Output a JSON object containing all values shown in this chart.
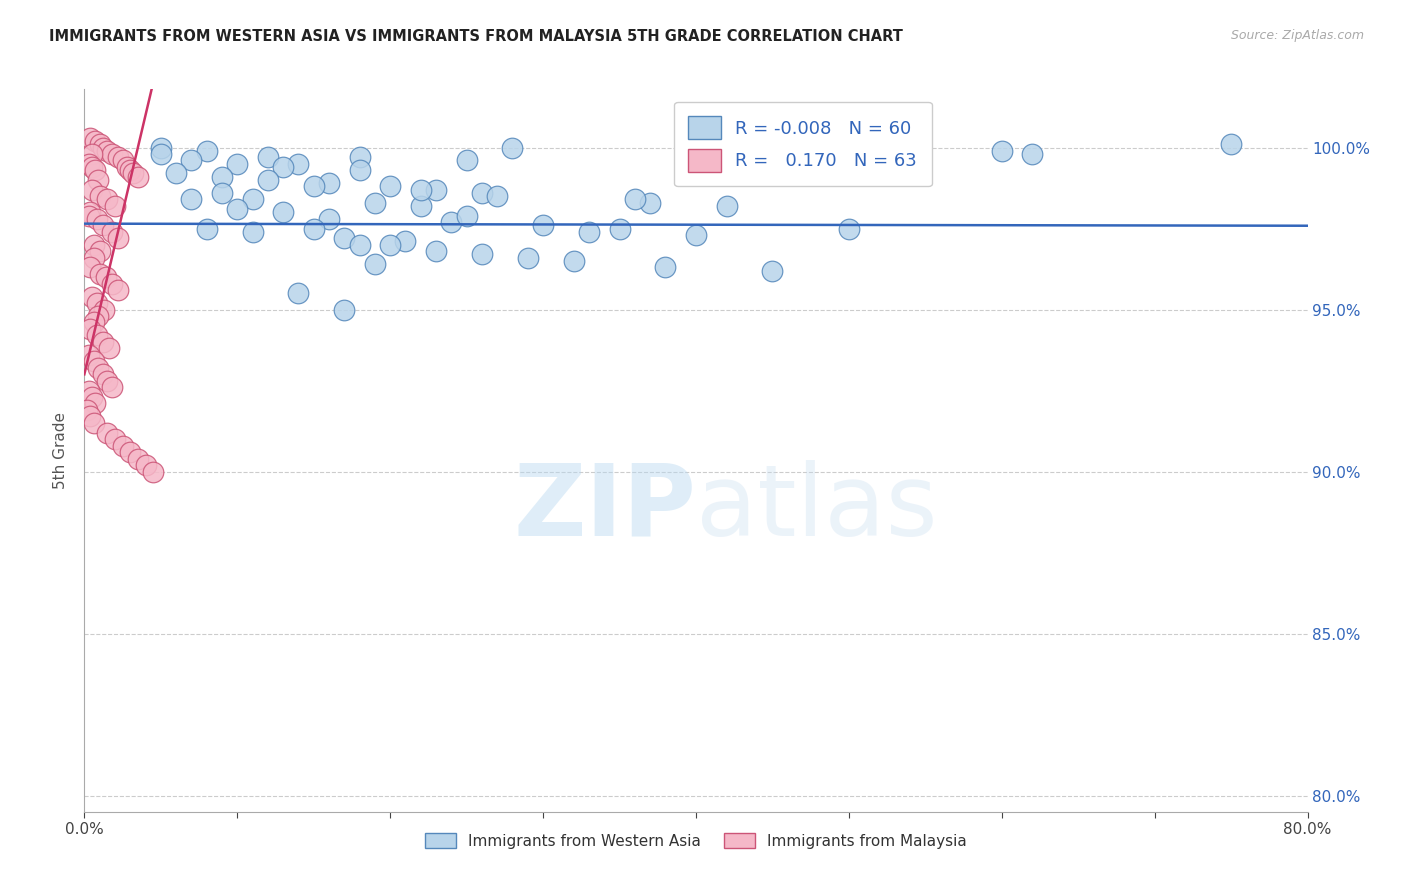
{
  "title": "IMMIGRANTS FROM WESTERN ASIA VS IMMIGRANTS FROM MALAYSIA 5TH GRADE CORRELATION CHART",
  "source": "Source: ZipAtlas.com",
  "ylabel": "5th Grade",
  "xmin": 0.0,
  "xmax": 0.8,
  "ymin": 0.795,
  "ymax": 1.018,
  "ytick_labels": [
    "80.0%",
    "85.0%",
    "90.0%",
    "95.0%",
    "100.0%"
  ],
  "ytick_vals": [
    0.8,
    0.85,
    0.9,
    0.95,
    1.0
  ],
  "xtick_vals": [
    0.0,
    0.1,
    0.2,
    0.3,
    0.4,
    0.5,
    0.6,
    0.7,
    0.8
  ],
  "xtick_labels": [
    "0.0%",
    "",
    "",
    "",
    "",
    "",
    "",
    "",
    "80.0%"
  ],
  "blue_R": "-0.008",
  "blue_N": "60",
  "pink_R": "0.170",
  "pink_N": "63",
  "blue_fill": "#b8d4ea",
  "blue_edge": "#5588bb",
  "pink_fill": "#f5b8c8",
  "pink_edge": "#cc5577",
  "blue_line_color": "#3366bb",
  "pink_line_color": "#cc3366",
  "watermark_zip": "ZIP",
  "watermark_atlas": "atlas",
  "blue_x": [
    0.05,
    0.18,
    0.08,
    0.28,
    0.4,
    0.12,
    0.14,
    0.07,
    0.1,
    0.13,
    0.18,
    0.06,
    0.09,
    0.16,
    0.2,
    0.23,
    0.26,
    0.11,
    0.19,
    0.22,
    0.07,
    0.1,
    0.13,
    0.16,
    0.24,
    0.3,
    0.35,
    0.33,
    0.37,
    0.4,
    0.12,
    0.15,
    0.22,
    0.27,
    0.36,
    0.42,
    0.5,
    0.09,
    0.17,
    0.21,
    0.6,
    0.2,
    0.23,
    0.26,
    0.29,
    0.32,
    0.08,
    0.11,
    0.19,
    0.75,
    0.38,
    0.45,
    0.25,
    0.15,
    0.18,
    0.25,
    0.05,
    0.62,
    0.14,
    0.17
  ],
  "blue_y": [
    1.0,
    0.997,
    0.999,
    1.0,
    0.999,
    0.997,
    0.995,
    0.996,
    0.995,
    0.994,
    0.993,
    0.992,
    0.991,
    0.989,
    0.988,
    0.987,
    0.986,
    0.984,
    0.983,
    0.982,
    0.984,
    0.981,
    0.98,
    0.978,
    0.977,
    0.976,
    0.975,
    0.974,
    0.983,
    0.973,
    0.99,
    0.988,
    0.987,
    0.985,
    0.984,
    0.982,
    0.975,
    0.986,
    0.972,
    0.971,
    0.999,
    0.97,
    0.968,
    0.967,
    0.966,
    0.965,
    0.975,
    0.974,
    0.964,
    1.001,
    0.963,
    0.962,
    0.996,
    0.975,
    0.97,
    0.979,
    0.998,
    0.998,
    0.955,
    0.95
  ],
  "pink_x": [
    0.004,
    0.007,
    0.01,
    0.012,
    0.015,
    0.018,
    0.005,
    0.022,
    0.025,
    0.028,
    0.03,
    0.032,
    0.035,
    0.003,
    0.005,
    0.007,
    0.009,
    0.005,
    0.01,
    0.015,
    0.02,
    0.004,
    0.003,
    0.008,
    0.012,
    0.018,
    0.022,
    0.006,
    0.01,
    0.006,
    0.004,
    0.01,
    0.014,
    0.018,
    0.022,
    0.005,
    0.008,
    0.013,
    0.009,
    0.006,
    0.004,
    0.008,
    0.012,
    0.016,
    0.003,
    0.006,
    0.009,
    0.012,
    0.015,
    0.018,
    0.003,
    0.005,
    0.007,
    0.002,
    0.004,
    0.006,
    0.015,
    0.02,
    0.025,
    0.03,
    0.035,
    0.04,
    0.045
  ],
  "pink_y": [
    1.003,
    1.002,
    1.001,
    1.0,
    0.999,
    0.998,
    0.998,
    0.997,
    0.996,
    0.994,
    0.993,
    0.992,
    0.991,
    0.995,
    0.994,
    0.993,
    0.99,
    0.987,
    0.985,
    0.984,
    0.982,
    0.98,
    0.979,
    0.978,
    0.976,
    0.974,
    0.972,
    0.97,
    0.968,
    0.966,
    0.963,
    0.961,
    0.96,
    0.958,
    0.956,
    0.954,
    0.952,
    0.95,
    0.948,
    0.946,
    0.944,
    0.942,
    0.94,
    0.938,
    0.936,
    0.934,
    0.932,
    0.93,
    0.928,
    0.926,
    0.925,
    0.923,
    0.921,
    0.919,
    0.917,
    0.915,
    0.912,
    0.91,
    0.908,
    0.906,
    0.904,
    0.902,
    0.9
  ]
}
